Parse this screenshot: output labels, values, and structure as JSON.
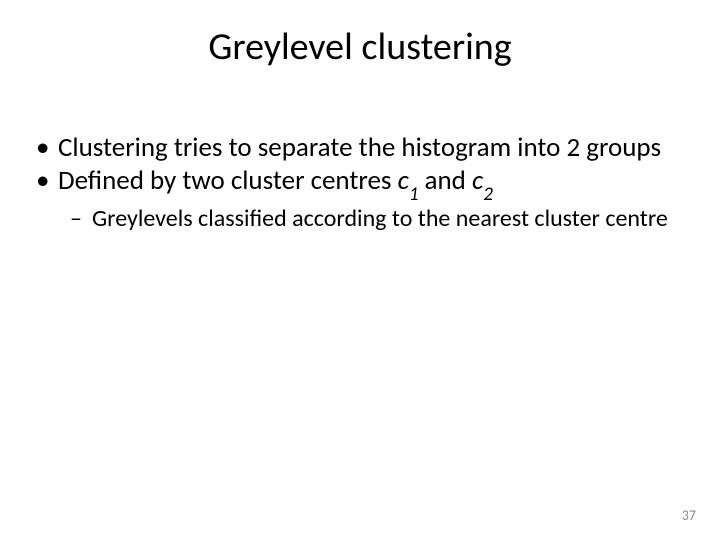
{
  "title": {
    "text": "Greylevel clustering",
    "style": "position:absolute; left:0; right:0; top:24px; font-size:38px; font-weight:400; text-align:center; color:#000000;"
  },
  "list": {
    "style": "position:absolute; left:58px; top:132px; width:610px; list-style:none;",
    "l1_style": "font-size:27px; line-height:1.22; margin-left:0; margin-bottom:0; color:#000000; position:relative;",
    "l2_style": "font-size:24px; line-height:1.25; margin-left:34px; margin-top:2px; color:#000000; position:relative;",
    "sub_style": "font-size:19px; font-style:italic; position:relative; top:5px;"
  },
  "bullets": [
    {
      "text": "Clustering tries to separate the histogram into 2 groups"
    },
    {
      "prefix": "Defined by two cluster centres  ",
      "var1_c": "c",
      "var1_sub": "1",
      "mid": "  and ",
      "var2_c": "c",
      "var2_sub": "2"
    },
    {
      "text": "Greylevels classified according to the nearest cluster centre"
    }
  ],
  "pagenum": {
    "text": "37",
    "style": "position:absolute; right:24px; bottom:16px; font-size:14px; color:#8a8a8a;"
  }
}
